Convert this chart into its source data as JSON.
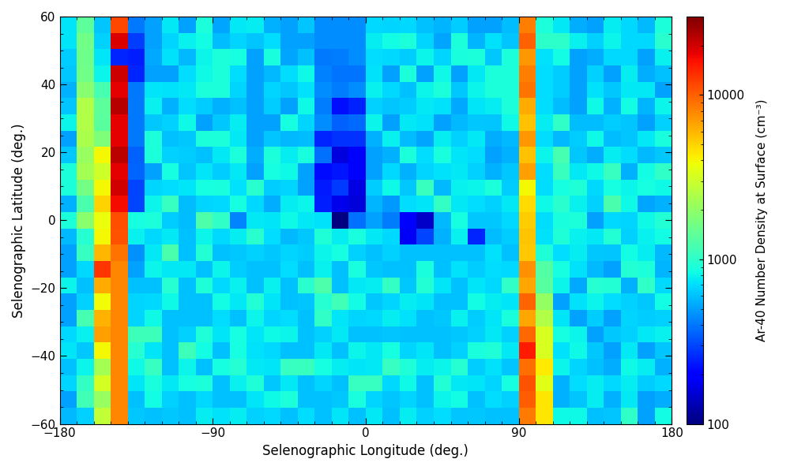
{
  "lon_min": -180,
  "lon_max": 180,
  "lat_min": -60,
  "lat_max": 60,
  "vmin": 100,
  "vmax": 30000,
  "xlabel": "Selenographic Longitude (deg.)",
  "ylabel": "Selenographic Latitude (deg.)",
  "cbar_label": "Ar-40 Number Density at Surface (cm⁻³)",
  "cbar_ticks": [
    100,
    1000,
    10000
  ],
  "cbar_ticklabels": [
    "100",
    "1000",
    "10000"
  ],
  "xticks": [
    -180,
    -90,
    0,
    90,
    180
  ],
  "yticks": [
    -60,
    -40,
    -20,
    0,
    20,
    40,
    60
  ],
  "colormap": "jet",
  "n_lon": 36,
  "n_lat": 25,
  "Z": [
    [
      700,
      1200,
      700,
      12000,
      500,
      600,
      700,
      600,
      700,
      600,
      700,
      600,
      700,
      600,
      700,
      700,
      700,
      700,
      700,
      700,
      700,
      700,
      700,
      700,
      700,
      300,
      700,
      8000,
      700,
      700,
      700,
      700,
      700,
      700,
      700,
      700
    ],
    [
      700,
      1500,
      800,
      14000,
      300,
      600,
      700,
      700,
      700,
      600,
      700,
      600,
      700,
      600,
      700,
      700,
      700,
      700,
      700,
      700,
      700,
      700,
      700,
      700,
      700,
      700,
      700,
      9000,
      700,
      700,
      700,
      700,
      700,
      700,
      700,
      700
    ],
    [
      700,
      1200,
      700,
      15000,
      250,
      500,
      700,
      700,
      700,
      700,
      700,
      300,
      700,
      600,
      700,
      500,
      500,
      600,
      700,
      700,
      700,
      700,
      700,
      700,
      700,
      700,
      700,
      8000,
      700,
      700,
      700,
      700,
      700,
      700,
      700,
      700
    ],
    [
      700,
      1500,
      900,
      16000,
      300,
      600,
      700,
      700,
      700,
      700,
      700,
      300,
      700,
      600,
      700,
      400,
      500,
      500,
      600,
      700,
      700,
      700,
      700,
      700,
      700,
      700,
      2000,
      10000,
      700,
      700,
      700,
      700,
      700,
      700,
      700,
      700
    ],
    [
      700,
      2000,
      1200,
      18000,
      350,
      700,
      700,
      700,
      700,
      700,
      700,
      350,
      700,
      600,
      700,
      400,
      400,
      400,
      600,
      700,
      700,
      700,
      700,
      700,
      700,
      700,
      1500,
      8000,
      700,
      700,
      700,
      700,
      700,
      700,
      700,
      700
    ],
    [
      700,
      2500,
      1200,
      20000,
      400,
      700,
      700,
      700,
      700,
      700,
      700,
      400,
      700,
      700,
      700,
      400,
      300,
      350,
      700,
      700,
      700,
      700,
      700,
      700,
      700,
      700,
      1200,
      7000,
      700,
      700,
      700,
      700,
      700,
      700,
      700,
      700
    ],
    [
      700,
      3000,
      1500,
      18000,
      400,
      700,
      700,
      700,
      700,
      700,
      700,
      400,
      700,
      700,
      700,
      400,
      300,
      300,
      700,
      700,
      700,
      700,
      700,
      700,
      700,
      700,
      1000,
      6000,
      700,
      700,
      700,
      700,
      700,
      700,
      700,
      700
    ],
    [
      700,
      2500,
      2000,
      20000,
      400,
      700,
      700,
      700,
      700,
      700,
      700,
      450,
      700,
      700,
      700,
      300,
      300,
      300,
      600,
      700,
      700,
      700,
      700,
      700,
      700,
      700,
      800,
      6000,
      700,
      700,
      700,
      700,
      700,
      700,
      700,
      700
    ],
    [
      700,
      2000,
      2500,
      22000,
      350,
      700,
      700,
      700,
      700,
      700,
      700,
      500,
      700,
      700,
      700,
      250,
      250,
      250,
      600,
      700,
      700,
      700,
      700,
      700,
      700,
      700,
      700,
      5000,
      700,
      700,
      700,
      700,
      700,
      700,
      700,
      700
    ],
    [
      700,
      2000,
      3000,
      20000,
      350,
      700,
      700,
      700,
      700,
      700,
      700,
      600,
      700,
      700,
      700,
      200,
      250,
      200,
      600,
      700,
      700,
      700,
      700,
      700,
      700,
      700,
      700,
      5000,
      700,
      700,
      700,
      700,
      700,
      700,
      700,
      700
    ],
    [
      700,
      1800,
      3500,
      18000,
      350,
      800,
      700,
      700,
      700,
      700,
      700,
      700,
      700,
      700,
      700,
      250,
      200,
      200,
      600,
      700,
      700,
      1200,
      700,
      700,
      700,
      700,
      700,
      4000,
      700,
      700,
      700,
      700,
      700,
      700,
      700,
      700
    ],
    [
      700,
      1500,
      4000,
      15000,
      400,
      900,
      700,
      700,
      700,
      700,
      700,
      700,
      700,
      700,
      700,
      300,
      200,
      200,
      600,
      700,
      700,
      700,
      700,
      700,
      700,
      700,
      700,
      5000,
      700,
      700,
      700,
      700,
      700,
      700,
      700,
      700
    ],
    [
      700,
      1500,
      5000,
      12000,
      1000,
      800,
      700,
      700,
      700,
      700,
      700,
      700,
      700,
      700,
      700,
      700,
      100,
      500,
      700,
      700,
      200,
      200,
      700,
      700,
      700,
      700,
      700,
      4000,
      700,
      700,
      700,
      700,
      700,
      700,
      700,
      700
    ],
    [
      700,
      1200,
      6000,
      10000,
      700,
      700,
      700,
      700,
      700,
      700,
      700,
      700,
      700,
      700,
      700,
      700,
      700,
      800,
      700,
      700,
      300,
      200,
      700,
      700,
      200,
      700,
      700,
      5000,
      700,
      700,
      700,
      700,
      700,
      700,
      700,
      700
    ],
    [
      500,
      1000,
      8000,
      8000,
      600,
      700,
      700,
      700,
      700,
      700,
      700,
      700,
      700,
      700,
      700,
      700,
      700,
      700,
      700,
      700,
      200,
      180,
      250,
      700,
      250,
      700,
      700,
      6000,
      1000,
      700,
      700,
      700,
      700,
      700,
      700,
      700
    ],
    [
      500,
      800,
      9000,
      6000,
      700,
      700,
      700,
      700,
      700,
      700,
      700,
      700,
      700,
      700,
      700,
      700,
      700,
      700,
      700,
      700,
      700,
      700,
      700,
      700,
      700,
      700,
      700,
      7000,
      1200,
      700,
      700,
      700,
      700,
      700,
      700,
      700
    ],
    [
      500,
      700,
      8000,
      5000,
      700,
      700,
      700,
      700,
      700,
      700,
      700,
      700,
      700,
      700,
      700,
      700,
      700,
      700,
      700,
      700,
      700,
      700,
      700,
      700,
      700,
      700,
      700,
      8000,
      1500,
      700,
      700,
      700,
      700,
      700,
      700,
      700
    ],
    [
      500,
      700,
      7000,
      4000,
      700,
      700,
      700,
      700,
      700,
      700,
      700,
      700,
      700,
      700,
      700,
      700,
      700,
      700,
      700,
      700,
      700,
      700,
      700,
      700,
      700,
      700,
      700,
      9000,
      2000,
      700,
      700,
      700,
      700,
      700,
      700,
      700
    ],
    [
      600,
      700,
      6000,
      3500,
      700,
      700,
      700,
      700,
      700,
      700,
      700,
      700,
      700,
      700,
      700,
      700,
      700,
      700,
      700,
      700,
      700,
      700,
      700,
      700,
      700,
      700,
      700,
      9000,
      2500,
      700,
      700,
      700,
      700,
      700,
      700,
      700
    ],
    [
      600,
      700,
      5000,
      3000,
      700,
      800,
      700,
      700,
      700,
      700,
      700,
      700,
      700,
      700,
      700,
      700,
      700,
      700,
      700,
      700,
      700,
      700,
      700,
      700,
      700,
      700,
      700,
      10000,
      3000,
      700,
      700,
      700,
      700,
      700,
      700,
      700
    ],
    [
      600,
      700,
      4000,
      2500,
      700,
      900,
      700,
      700,
      700,
      700,
      700,
      700,
      700,
      700,
      700,
      700,
      700,
      700,
      700,
      700,
      700,
      700,
      700,
      700,
      700,
      700,
      700,
      10000,
      3500,
      700,
      700,
      700,
      700,
      700,
      700,
      700
    ],
    [
      600,
      700,
      3500,
      2000,
      700,
      900,
      700,
      700,
      700,
      700,
      700,
      700,
      700,
      700,
      700,
      700,
      700,
      700,
      700,
      700,
      700,
      700,
      700,
      700,
      700,
      700,
      700,
      12000,
      4000,
      700,
      700,
      700,
      700,
      700,
      700,
      700
    ],
    [
      600,
      900,
      3000,
      2000,
      700,
      700,
      700,
      700,
      700,
      700,
      700,
      700,
      700,
      700,
      700,
      700,
      700,
      700,
      700,
      700,
      700,
      700,
      700,
      700,
      700,
      700,
      700,
      12000,
      4500,
      700,
      700,
      700,
      700,
      700,
      700,
      700
    ],
    [
      600,
      1000,
      2500,
      2000,
      700,
      700,
      700,
      700,
      700,
      700,
      700,
      700,
      700,
      700,
      700,
      700,
      700,
      700,
      700,
      700,
      700,
      700,
      700,
      700,
      700,
      700,
      700,
      10000,
      5000,
      700,
      700,
      700,
      700,
      700,
      700,
      700
    ],
    [
      500,
      700,
      2000,
      2000,
      700,
      700,
      700,
      700,
      500,
      700,
      700,
      700,
      700,
      700,
      700,
      700,
      700,
      700,
      700,
      700,
      700,
      700,
      700,
      700,
      700,
      700,
      700,
      9000,
      4500,
      700,
      700,
      700,
      700,
      700,
      700,
      700
    ]
  ]
}
